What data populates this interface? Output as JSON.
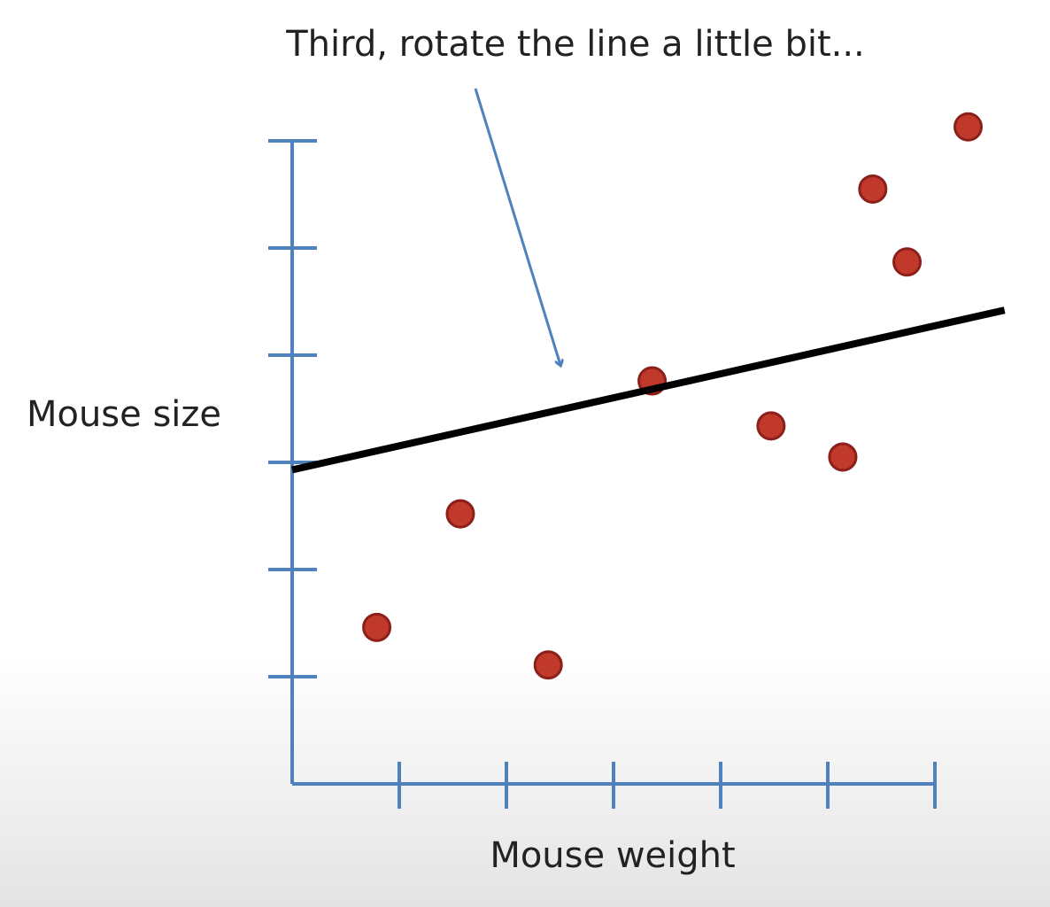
{
  "chart_data": {
    "type": "scatter",
    "title": "Third, rotate the line a little bit...",
    "x_label": "Mouse weight",
    "y_label": "Mouse size",
    "xlim": [
      0,
      6.8
    ],
    "ylim": [
      0,
      6.4
    ],
    "xticks": [
      1,
      2,
      3,
      4,
      5,
      6
    ],
    "yticks": [
      1,
      2,
      3,
      4,
      5,
      6
    ],
    "axis_color": "#4f81bd",
    "points": {
      "color": "#c0392b",
      "x": [
        0.79,
        1.57,
        2.39,
        3.36,
        4.47,
        5.14,
        5.42,
        5.74,
        6.31
      ],
      "values": [
        1.46,
        2.52,
        1.11,
        3.76,
        3.34,
        3.05,
        5.55,
        4.87,
        6.13
      ]
    },
    "fit_line": {
      "color": "#000000",
      "x": [
        0,
        6.65
      ],
      "values": [
        2.93,
        4.42
      ]
    }
  }
}
